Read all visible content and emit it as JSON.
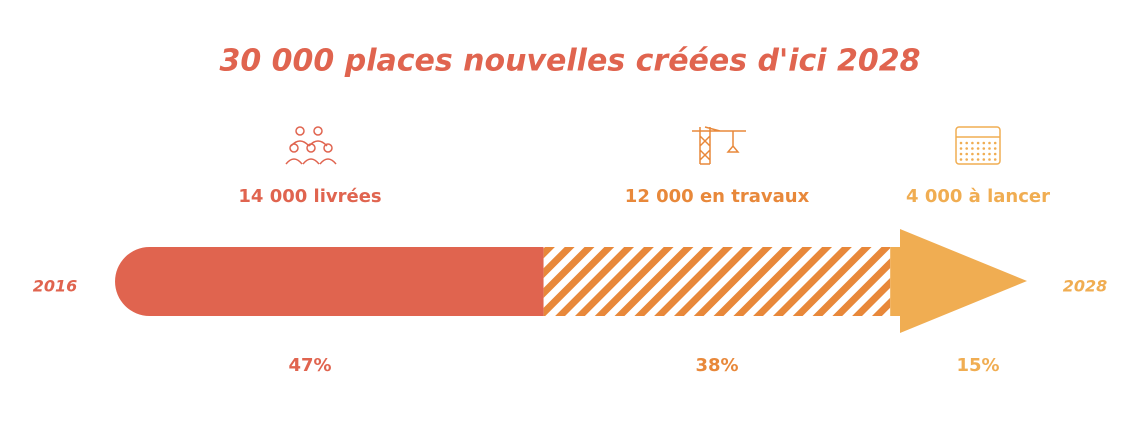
{
  "chart_data": {
    "type": "stacked-arrow",
    "title": "30 000 places nouvelles créées d'ici 2028",
    "start_label": "2016",
    "end_label": "2028",
    "categories": [
      "14 000 livrées",
      "12 000 en travaux",
      "4 000 à lancer"
    ],
    "values": [
      47,
      38,
      15
    ],
    "value_labels": [
      "47%",
      "38%",
      "15%"
    ],
    "colors": [
      "#e0644f",
      "#e8883a",
      "#f0ad52"
    ],
    "patterns": [
      "solid",
      "hatched",
      "solid"
    ]
  }
}
